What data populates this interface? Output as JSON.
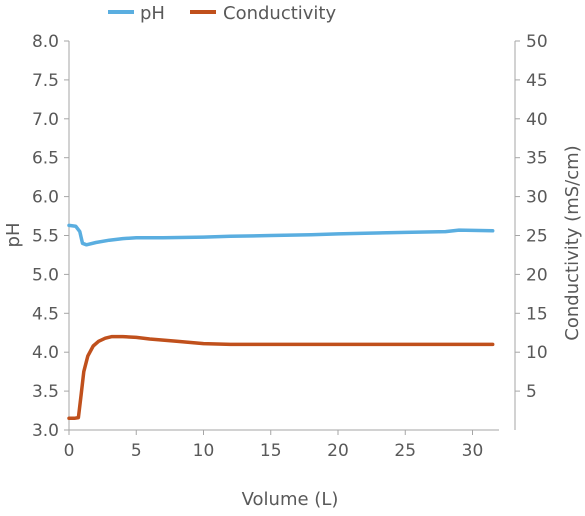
{
  "chart_data": {
    "type": "line",
    "title": "",
    "xlabel": "Volume (L)",
    "ylabel": "pH",
    "y2label": "Conductivity (mS/cm)",
    "xlim": [
      0,
      32
    ],
    "ylim": [
      3.0,
      8.0
    ],
    "y2lim": [
      0,
      50
    ],
    "x_ticks": [
      "0",
      "5",
      "10",
      "15",
      "20",
      "25",
      "30"
    ],
    "y_ticks": [
      "3.0",
      "3.5",
      "4.0",
      "4.5",
      "5.0",
      "5.5",
      "6.0",
      "6.5",
      "7.0",
      "7.5",
      "8.0"
    ],
    "y2_ticks": [
      "5",
      "10",
      "15",
      "20",
      "25",
      "30",
      "35",
      "40",
      "45",
      "50"
    ],
    "legend": "top-left",
    "grid": false,
    "colors": {
      "ph": "#5aaee0",
      "conductivity": "#c0501c"
    },
    "series": [
      {
        "name": "pH",
        "axis": "left",
        "x": [
          0,
          0.5,
          0.8,
          1.0,
          1.3,
          2,
          3,
          4,
          5,
          7,
          10,
          12,
          15,
          18,
          20,
          22,
          25,
          28,
          29,
          31.5
        ],
        "values": [
          5.63,
          5.62,
          5.55,
          5.4,
          5.38,
          5.41,
          5.44,
          5.46,
          5.47,
          5.47,
          5.48,
          5.49,
          5.5,
          5.51,
          5.52,
          5.53,
          5.54,
          5.55,
          5.57,
          5.56
        ]
      },
      {
        "name": "Conductivity",
        "axis": "right",
        "x": [
          0,
          0.4,
          0.7,
          0.9,
          1.1,
          1.4,
          1.8,
          2.2,
          2.7,
          3.2,
          4,
          5,
          6,
          8,
          10,
          12,
          15,
          20,
          25,
          31.5
        ],
        "values": [
          1.5,
          1.5,
          1.6,
          4.5,
          7.5,
          9.5,
          10.8,
          11.4,
          11.8,
          12.0,
          12.0,
          11.9,
          11.7,
          11.4,
          11.1,
          11.0,
          11.0,
          11.0,
          11.0,
          11.0
        ]
      }
    ]
  }
}
